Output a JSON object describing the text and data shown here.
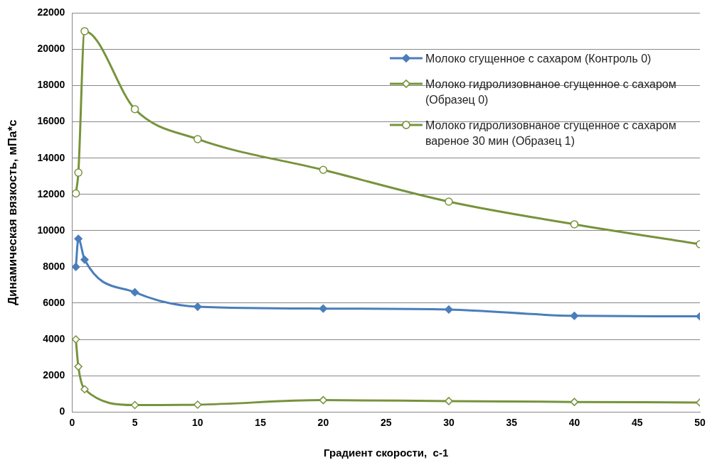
{
  "chart_data": {
    "type": "line",
    "xlabel": "Градиент скорости,  с-1",
    "ylabel": "Динамическая вязкость, мПа*с",
    "x": [
      0.3,
      0.5,
      1,
      5,
      10,
      20,
      30,
      40,
      50
    ],
    "series": [
      {
        "name": "Молоко сгущенное с сахаром (Контроль 0)",
        "color": "#4a7ebb",
        "marker": "diamond",
        "values": [
          8000,
          9550,
          8400,
          6600,
          5800,
          5700,
          5650,
          5300,
          5270
        ]
      },
      {
        "name": "Молоко гидролизовнаное сгущенное с сахаром (Образец 0)",
        "color": "#77933c",
        "marker": "diamond",
        "values": [
          4000,
          2500,
          1250,
          380,
          400,
          650,
          600,
          550,
          520
        ]
      },
      {
        "name": "Молоко гидролизовнаное сгущенное с сахаром вареное 30 мин (Образец 1)",
        "color": "#77933c",
        "marker": "circle",
        "values": [
          12050,
          13200,
          21000,
          16700,
          15050,
          13350,
          11600,
          10350,
          9250
        ]
      }
    ],
    "xlim": [
      0,
      50
    ],
    "xticks": [
      0,
      5,
      10,
      15,
      20,
      25,
      30,
      35,
      40,
      45,
      50
    ],
    "ylim": [
      0,
      22000
    ],
    "yticks": [
      0,
      2000,
      4000,
      6000,
      8000,
      10000,
      12000,
      14000,
      16000,
      18000,
      20000,
      22000
    ],
    "grid": "y",
    "legend": "top right",
    "line_style": "solid"
  }
}
